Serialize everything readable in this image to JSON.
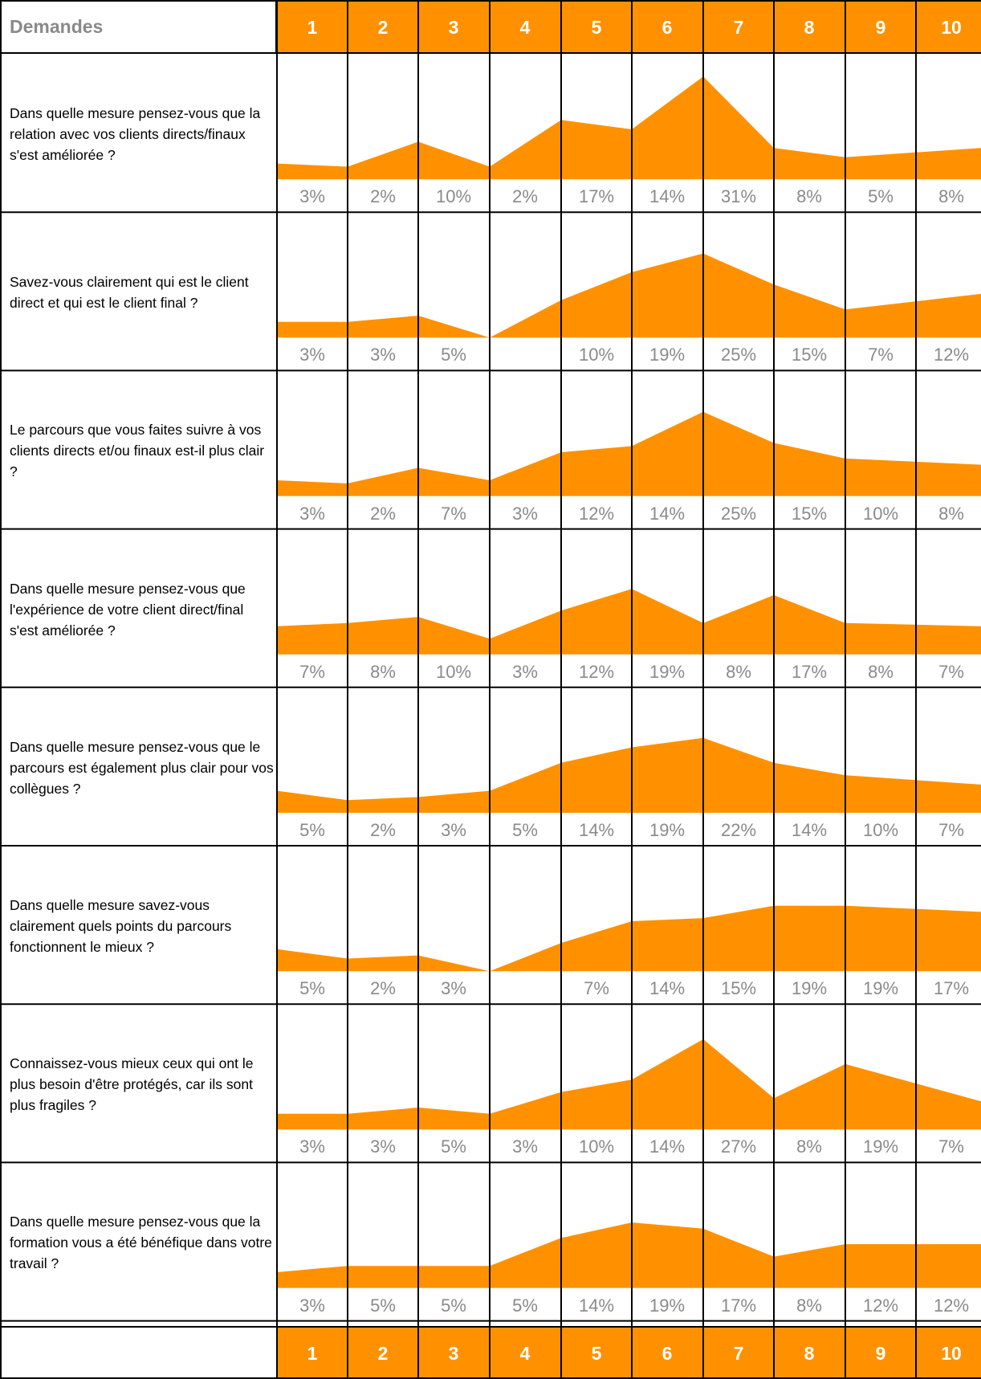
{
  "header": {
    "title": "Demandes"
  },
  "scale": [
    "1",
    "2",
    "3",
    "4",
    "5",
    "6",
    "7",
    "8",
    "9",
    "10"
  ],
  "colors": {
    "accent": "#FF9100",
    "label_gray": "#8a8a8a",
    "grid": "#000000"
  },
  "chart_data": {
    "type": "area",
    "x": [
      1,
      2,
      3,
      4,
      5,
      6,
      7,
      8,
      9,
      10
    ],
    "questions": [
      {
        "text": "Dans quelle mesure pensez-vous que la relation avec vos clients directs/finaux s'est améliorée ?",
        "values": [
          3,
          2,
          10,
          2,
          17,
          14,
          31,
          8,
          5,
          8
        ],
        "labels": [
          "3%",
          "2%",
          "10%",
          "2%",
          "17%",
          "14%",
          "31%",
          "8%",
          "5%",
          "8%"
        ]
      },
      {
        "text": "Savez-vous clairement qui est le client direct et qui est le client final ?",
        "values": [
          3,
          3,
          5,
          0,
          10,
          19,
          25,
          15,
          7,
          12
        ],
        "labels": [
          "3%",
          "3%",
          "5%",
          "",
          "10%",
          "19%",
          "25%",
          "15%",
          "7%",
          "12%"
        ]
      },
      {
        "text": "Le parcours que vous faites suivre à vos clients directs et/ou finaux est-il plus clair ?",
        "values": [
          3,
          2,
          7,
          3,
          12,
          14,
          25,
          15,
          10,
          8
        ],
        "labels": [
          "3%",
          "2%",
          "7%",
          "3%",
          "12%",
          "14%",
          "25%",
          "15%",
          "10%",
          "8%"
        ]
      },
      {
        "text": "Dans quelle mesure pensez-vous que l'expérience de votre client direct/final s'est améliorée ?",
        "values": [
          7,
          8,
          10,
          3,
          12,
          19,
          8,
          17,
          8,
          7
        ],
        "labels": [
          "7%",
          "8%",
          "10%",
          "3%",
          "12%",
          "19%",
          "8%",
          "17%",
          "8%",
          "7%"
        ]
      },
      {
        "text": "Dans quelle mesure pensez-vous que le parcours est également plus clair pour vos collègues ?",
        "values": [
          5,
          2,
          3,
          5,
          14,
          19,
          22,
          14,
          10,
          7
        ],
        "labels": [
          "5%",
          "2%",
          "3%",
          "5%",
          "14%",
          "19%",
          "22%",
          "14%",
          "10%",
          "7%"
        ]
      },
      {
        "text": "Dans quelle mesure savez-vous clairement quels points du parcours fonctionnent le mieux ?",
        "values": [
          5,
          2,
          3,
          0,
          7,
          14,
          15,
          19,
          19,
          17
        ],
        "labels": [
          "5%",
          "2%",
          "3%",
          "",
          "7%",
          "14%",
          "15%",
          "19%",
          "19%",
          "17%"
        ]
      },
      {
        "text": "Connaissez-vous mieux ceux qui ont le plus besoin d'être protégés, car ils sont plus fragiles ?",
        "values": [
          3,
          3,
          5,
          3,
          10,
          14,
          27,
          8,
          19,
          7
        ],
        "labels": [
          "3%",
          "3%",
          "5%",
          "3%",
          "10%",
          "14%",
          "27%",
          "8%",
          "19%",
          "7%"
        ]
      },
      {
        "text": "Dans quelle mesure pensez-vous que la formation vous a été bénéfique dans votre travail ?",
        "values": [
          3,
          5,
          5,
          5,
          14,
          19,
          17,
          8,
          12,
          12
        ],
        "labels": [
          "3%",
          "5%",
          "5%",
          "5%",
          "14%",
          "19%",
          "17%",
          "8%",
          "12%",
          "12%"
        ]
      }
    ]
  }
}
